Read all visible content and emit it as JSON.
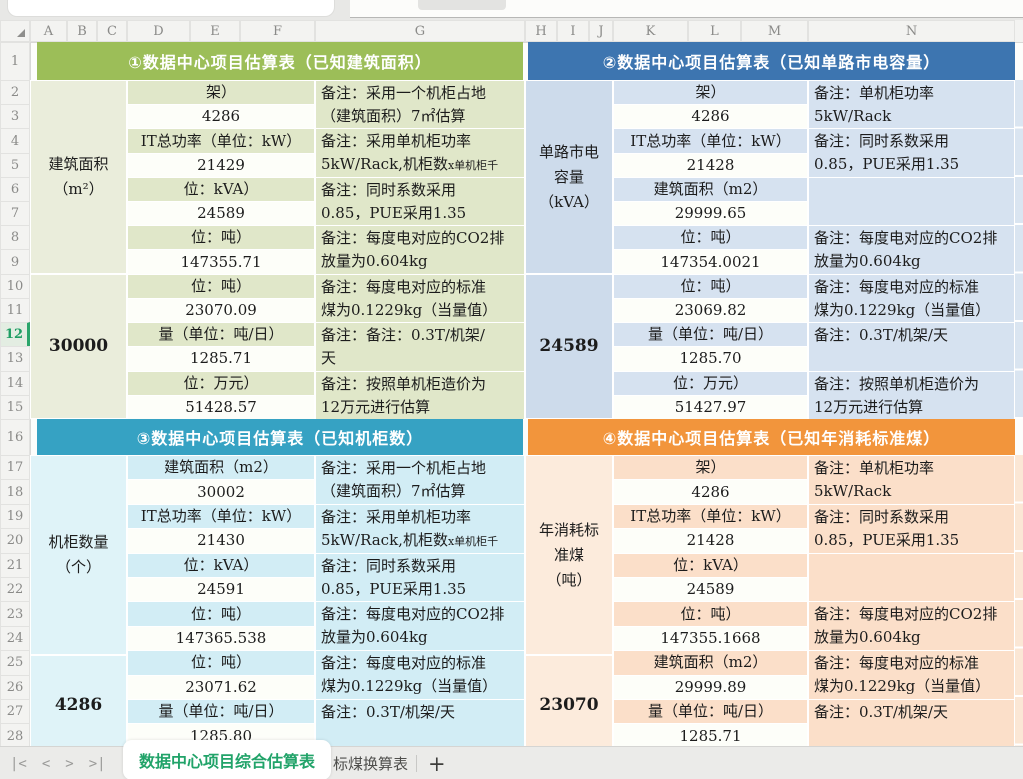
{
  "grid": {
    "columns": [
      "A",
      "B",
      "C",
      "D",
      "E",
      "F",
      "G",
      "H",
      "I",
      "J",
      "K",
      "L",
      "M",
      "N"
    ],
    "row_count": 28,
    "selected_row": "12",
    "selection_accent": "#2AA56B"
  },
  "tables": [
    {
      "title": "①数据中心项目估算表（已知建筑面积）",
      "side_label": "建筑面积（m²）",
      "side_label_lines": [
        "建筑面积",
        "（m²）"
      ],
      "side_value": "30000",
      "colors": {
        "header": "#9CBE58",
        "label": "#E0E7C9",
        "side": "#EAEDDB"
      },
      "pairs": [
        {
          "label": "架）",
          "value": "4286",
          "remark": "备注：采用一个机柜占地\n（建筑面积）7㎡估算"
        },
        {
          "label": "IT总功率（单位：kW）",
          "value": "21429",
          "remark": "备注：采用单机柜功率\n5kW/Rack,机柜数",
          "remark_small": "x单机柜千"
        },
        {
          "label": "位：kVA）",
          "value": "24589",
          "remark": "备注：同时系数采用\n0.85，PUE采用1.35"
        },
        {
          "label": "位：吨）",
          "value": "147355.71",
          "remark": "备注：每度电对应的CO2排\n放量为0.604kg"
        },
        {
          "label": "位：吨）",
          "value": "23070.09",
          "remark": "备注：每度电对应的标准\n煤为0.1229kg（当量值）"
        },
        {
          "label": "量（单位：吨/日）",
          "value": "1285.71",
          "remark": "备注：备注：0.3T/机架/\n天"
        },
        {
          "label": "位：万元）",
          "value": "51428.57",
          "remark": "备注：按照单机柜造价为\n12万元进行估算"
        }
      ]
    },
    {
      "title": "②数据中心项目估算表（已知单路市电容量）",
      "side_label": "单路市电容量（kVA）",
      "side_label_lines": [
        "单路市电",
        "容量",
        "（kVA）"
      ],
      "side_value": "24589",
      "colors": {
        "header": "#3D75B0",
        "label": "#D6E2F0",
        "side": "#CDDBEB"
      },
      "pairs": [
        {
          "label": "架）",
          "value": "4286",
          "remark": "备注：单机柜功率\n5kW/Rack"
        },
        {
          "label": "IT总功率（单位：kW）",
          "value": "21428",
          "remark": "备注：同时系数采用\n0.85，PUE采用1.35"
        },
        {
          "label": "建筑面积（m2）",
          "value": "29999.65",
          "remark": ""
        },
        {
          "label": "位：吨）",
          "value": "147354.0021",
          "remark": "备注：每度电对应的CO2排\n放量为0.604kg"
        },
        {
          "label": "位：吨）",
          "value": "23069.82",
          "remark": "备注：每度电对应的标准\n煤为0.1229kg（当量值）"
        },
        {
          "label": "量（单位：吨/日）",
          "value": "1285.70",
          "remark": "备注：0.3T/机架/天"
        },
        {
          "label": "位：万元）",
          "value": "51427.97",
          "remark": "备注：按照单机柜造价为\n12万元进行估算"
        }
      ]
    },
    {
      "title": "③数据中心项目估算表（已知机柜数）",
      "side_label": "机柜数量（个）",
      "side_label_lines": [
        "机柜数量",
        "（个）"
      ],
      "side_value": "4286",
      "colors": {
        "header": "#36A2C3",
        "label": "#D2EDF5",
        "side": "#DFF3F8"
      },
      "pairs": [
        {
          "label": "建筑面积（m2）",
          "value": "30002",
          "remark": "备注：采用一个机柜占地\n（建筑面积）7㎡估算"
        },
        {
          "label": "IT总功率（单位：kW）",
          "value": "21430",
          "remark": "备注：采用单机柜功率\n5kW/Rack,机柜数",
          "remark_small": "x单机柜千"
        },
        {
          "label": "位：kVA）",
          "value": "24591",
          "remark": "备注：同时系数采用\n0.85，PUE采用1.35"
        },
        {
          "label": "位：吨）",
          "value": "147365.538",
          "remark": "备注：每度电对应的CO2排\n放量为0.604kg"
        },
        {
          "label": "位：吨）",
          "value": "23071.62",
          "remark": "备注：每度电对应的标准\n煤为0.1229kg（当量值）"
        },
        {
          "label": "量（单位：吨/日）",
          "value": "1285.80",
          "remark": "备注：0.3T/机架/天"
        }
      ]
    },
    {
      "title": "④数据中心项目估算表（已知年消耗标准煤）",
      "side_label": "年消耗标准煤（吨）",
      "side_label_lines": [
        "年消耗标",
        "准煤",
        "（吨）"
      ],
      "side_value": "23070",
      "colors": {
        "header": "#F2953C",
        "label": "#FBDFC9",
        "side": "#FCEBDC"
      },
      "pairs": [
        {
          "label": "架）",
          "value": "4286",
          "remark": "备注：单机柜功率\n5kW/Rack"
        },
        {
          "label": "IT总功率（单位：kW）",
          "value": "21428",
          "remark": "备注：同时系数采用\n0.85，PUE采用1.35"
        },
        {
          "label": "位：kVA）",
          "value": "24589",
          "remark": ""
        },
        {
          "label": "位：吨）",
          "value": "147355.1668",
          "remark": "备注：每度电对应的CO2排\n放量为0.604kg"
        },
        {
          "label": "建筑面积（m2）",
          "value": "29999.89",
          "remark": "备注：每度电对应的标准\n煤为0.1229kg（当量值）"
        },
        {
          "label": "量（单位：吨/日）",
          "value": "1285.71",
          "remark": "备注：0.3T/机架/天"
        }
      ]
    }
  ],
  "tab_bar": {
    "nav": [
      "|<",
      "<",
      ">",
      ">|"
    ],
    "tabs": [
      {
        "label": "数据中心项目综合估算表",
        "active": true
      },
      {
        "label": "标煤换算表",
        "active": false
      }
    ],
    "add_label": "+",
    "active_color": "#21A369"
  }
}
